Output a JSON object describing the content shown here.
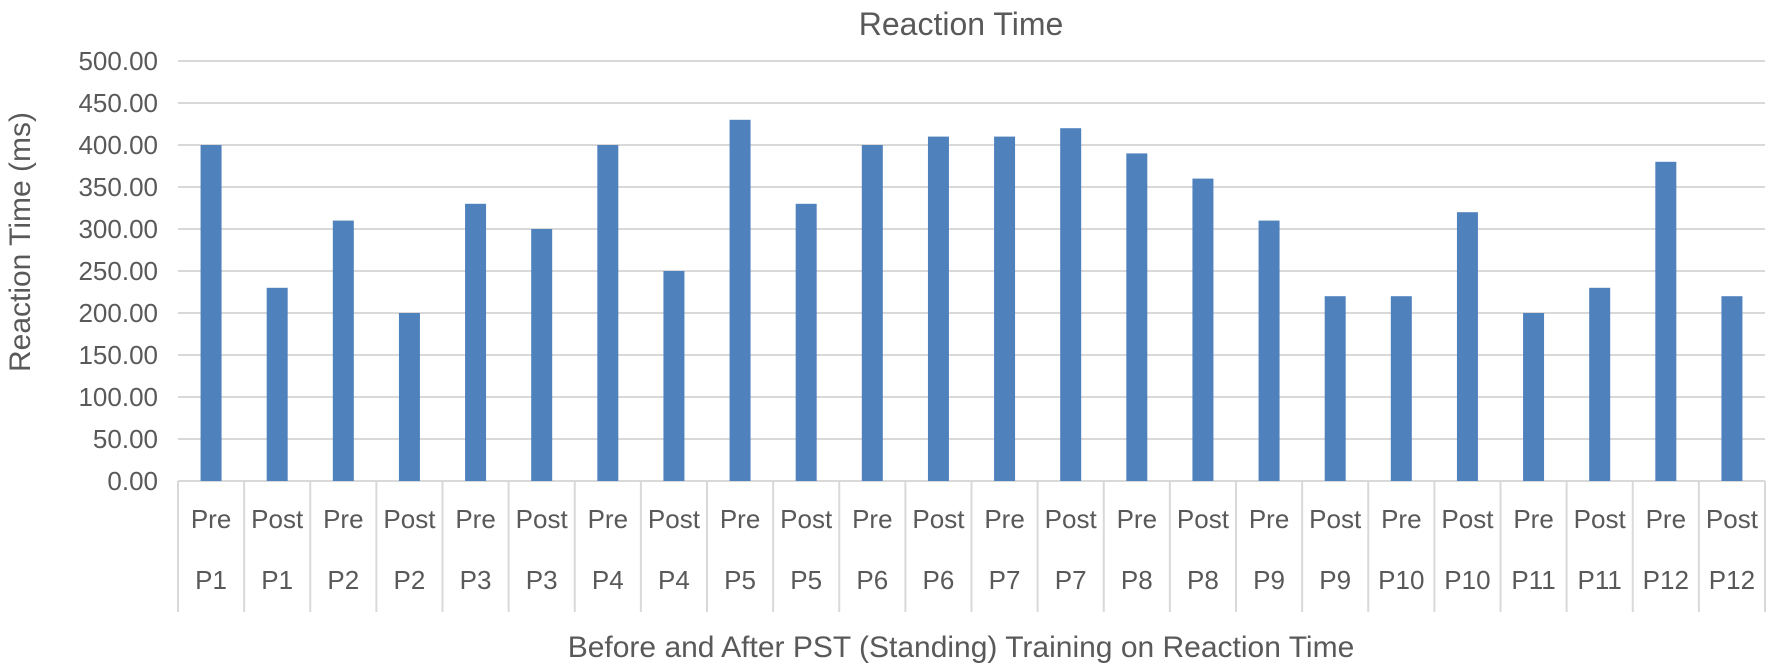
{
  "chart_data": {
    "type": "bar",
    "title": "Reaction Time",
    "xlabel": "Before and After PST (Standing) Training on Reaction Time",
    "ylabel": "Reaction Time (ms)",
    "ylim": [
      0,
      500
    ],
    "yticks": [
      "0.00",
      "50.00",
      "100.00",
      "150.00",
      "200.00",
      "250.00",
      "300.00",
      "350.00",
      "400.00",
      "450.00",
      "500.00"
    ],
    "grid": true,
    "legend": "none",
    "bar_color": "#4f81bd",
    "categories": [
      {
        "phase": "Pre",
        "participant": "P1"
      },
      {
        "phase": "Post",
        "participant": "P1"
      },
      {
        "phase": "Pre",
        "participant": "P2"
      },
      {
        "phase": "Post",
        "participant": "P2"
      },
      {
        "phase": "Pre",
        "participant": "P3"
      },
      {
        "phase": "Post",
        "participant": "P3"
      },
      {
        "phase": "Pre",
        "participant": "P4"
      },
      {
        "phase": "Post",
        "participant": "P4"
      },
      {
        "phase": "Pre",
        "participant": "P5"
      },
      {
        "phase": "Post",
        "participant": "P5"
      },
      {
        "phase": "Pre",
        "participant": "P6"
      },
      {
        "phase": "Post",
        "participant": "P6"
      },
      {
        "phase": "Pre",
        "participant": "P7"
      },
      {
        "phase": "Post",
        "participant": "P7"
      },
      {
        "phase": "Pre",
        "participant": "P8"
      },
      {
        "phase": "Post",
        "participant": "P8"
      },
      {
        "phase": "Pre",
        "participant": "P9"
      },
      {
        "phase": "Post",
        "participant": "P9"
      },
      {
        "phase": "Pre",
        "participant": "P10"
      },
      {
        "phase": "Post",
        "participant": "P10"
      },
      {
        "phase": "Pre",
        "participant": "P11"
      },
      {
        "phase": "Post",
        "participant": "P11"
      },
      {
        "phase": "Pre",
        "participant": "P12"
      },
      {
        "phase": "Post",
        "participant": "P12"
      }
    ],
    "values": [
      400,
      230,
      310,
      200,
      330,
      300,
      400,
      250,
      430,
      330,
      400,
      410,
      410,
      420,
      390,
      360,
      310,
      220,
      220,
      320,
      200,
      230,
      380,
      220
    ]
  }
}
